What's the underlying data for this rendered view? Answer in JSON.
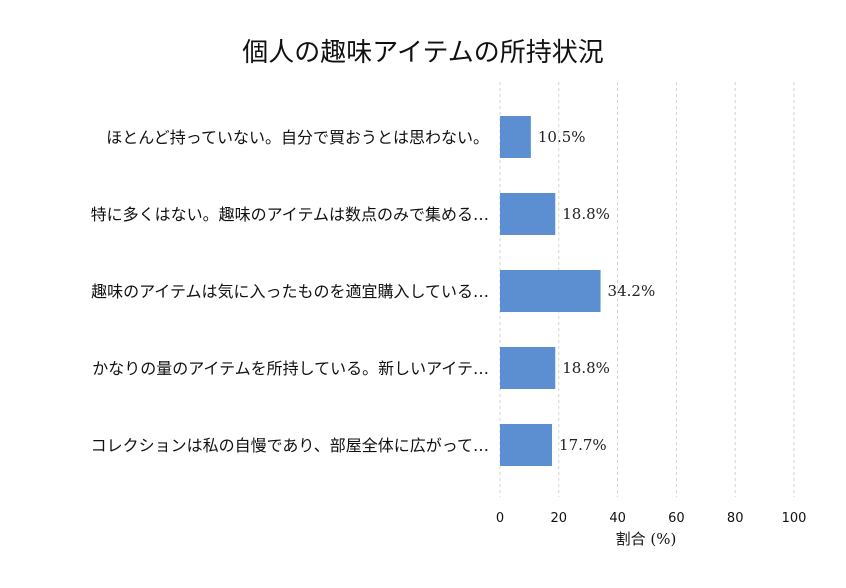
{
  "chart_data": {
    "type": "bar",
    "orientation": "horizontal",
    "title": "個人の趣味アイテムの所持状況",
    "xlabel": "割合 (%)",
    "ylabel": "",
    "xlim": [
      0,
      100
    ],
    "xticks": [
      0,
      20,
      40,
      60,
      80,
      100
    ],
    "grid": "vertical-dashed",
    "color": "#5b8fd1",
    "categories": [
      "ほとんど持っていない。自分で買おうとは思わない。",
      "特に多くはない。趣味のアイテムは数点のみで集める…",
      "趣味のアイテムは気に入ったものを適宜購入している…",
      "かなりの量のアイテムを所持している。新しいアイテ…",
      "コレクションは私の自慢であり、部屋全体に広がって…"
    ],
    "values": [
      10.5,
      18.8,
      34.2,
      18.8,
      17.7
    ],
    "value_labels": [
      "10.5%",
      "18.8%",
      "34.2%",
      "18.8%",
      "17.7%"
    ]
  }
}
